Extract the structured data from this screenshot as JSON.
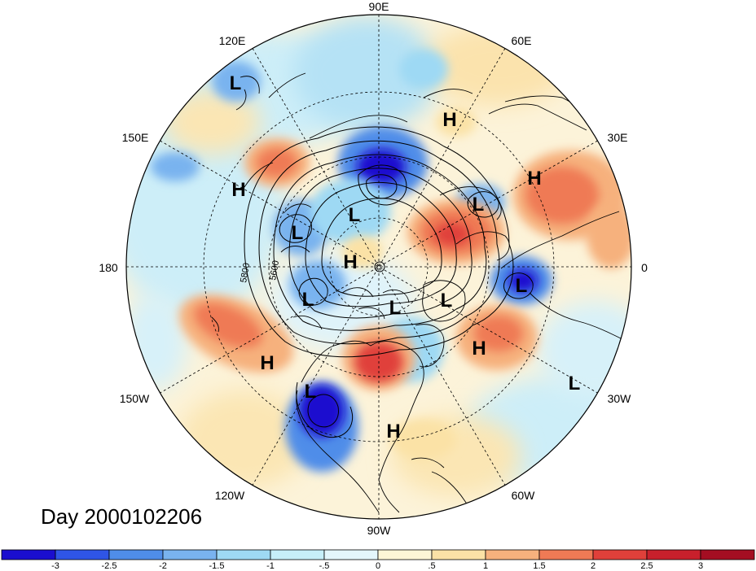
{
  "map": {
    "date_label": "Day 2000102206",
    "longitude_labels": [
      "90E",
      "60E",
      "30E",
      "0",
      "30W",
      "60W",
      "90W",
      "120W",
      "150W",
      "180",
      "150E",
      "120E"
    ],
    "contour_labels": [
      "5800",
      "5600"
    ],
    "pressure_centers": [
      {
        "type": "L",
        "name": "low-east-siberia"
      },
      {
        "type": "H",
        "name": "high-west-russia"
      },
      {
        "type": "H",
        "name": "high-siberia-pacific"
      },
      {
        "type": "H",
        "name": "high-europe"
      },
      {
        "type": "L",
        "name": "low-laptev"
      },
      {
        "type": "L",
        "name": "low-barents"
      },
      {
        "type": "L",
        "name": "low-chukchi"
      },
      {
        "type": "H",
        "name": "high-arctic"
      },
      {
        "type": "L",
        "name": "low-east-atlantic"
      },
      {
        "type": "L",
        "name": "low-alaska"
      },
      {
        "type": "L",
        "name": "low-canadian-arctic"
      },
      {
        "type": "L",
        "name": "low-greenland"
      },
      {
        "type": "H",
        "name": "high-north-atlantic"
      },
      {
        "type": "H",
        "name": "high-north-pacific"
      },
      {
        "type": "L",
        "name": "low-west-us"
      },
      {
        "type": "H",
        "name": "high-caribbean"
      },
      {
        "type": "L",
        "name": "low-central-atlantic"
      }
    ]
  },
  "colorbar": {
    "tick_labels": [
      "-3",
      "-2.5",
      "-2",
      "-1.5",
      "-1",
      "-.5",
      "0",
      ".5",
      "1",
      "1.5",
      "2",
      "2.5",
      "3"
    ],
    "colors": [
      "#1a0ecf",
      "#2f55e6",
      "#4f8de9",
      "#79b3ef",
      "#9ed9f4",
      "#c6eff9",
      "#e3f6fb",
      "#fdf6d6",
      "#fbe2a6",
      "#f6b17d",
      "#ef7a55",
      "#e0403a",
      "#c8202c",
      "#a40e22"
    ]
  }
}
